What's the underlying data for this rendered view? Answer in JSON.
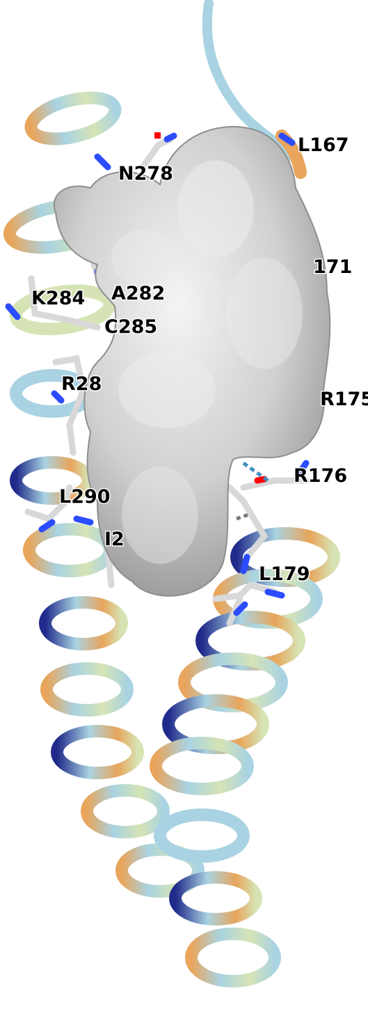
{
  "residue_labels": [
    {
      "id": "L167",
      "text": "L167"
    },
    {
      "id": "N278",
      "text": "N278"
    },
    {
      "id": "171",
      "text": "171"
    },
    {
      "id": "A282",
      "text": "A282"
    },
    {
      "id": "K284",
      "text": "K284"
    },
    {
      "id": "C285",
      "text": "C285"
    },
    {
      "id": "R28x",
      "text": "R28"
    },
    {
      "id": "R175",
      "text": "R175"
    },
    {
      "id": "R176",
      "text": "R176"
    },
    {
      "id": "L29x",
      "text": "L290"
    },
    {
      "id": "I2xx",
      "text": "I2"
    },
    {
      "id": "L179",
      "text": "L179"
    }
  ],
  "colors": {
    "surface": "#d3d3d3",
    "surface_shade": "#9e9e9e",
    "helix_light_blue": "#a9d3e2",
    "helix_orange": "#e8a55b",
    "helix_pale_green": "#d6e4b5",
    "helix_navy": "#1f2a8a",
    "sidechain": "#d8d8d8",
    "nitrogen": "#2b4cff",
    "oxygen": "#ff0000",
    "sulfur": "#ffee00",
    "hbond": "#3f8fc2"
  }
}
